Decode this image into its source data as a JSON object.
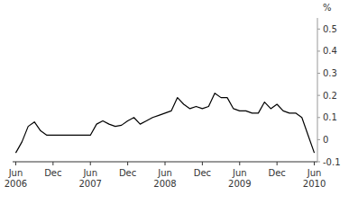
{
  "chart_data": {
    "type": "line",
    "ylabel": "%",
    "categories": [
      "Jun\n2006",
      null,
      null,
      null,
      null,
      null,
      "Dec",
      null,
      null,
      null,
      null,
      null,
      "Jun\n2007",
      null,
      null,
      null,
      null,
      null,
      "Dec",
      null,
      null,
      null,
      null,
      null,
      "Jun\n2008",
      null,
      null,
      null,
      null,
      null,
      "Dec",
      null,
      null,
      null,
      null,
      null,
      "Jun\n2009",
      null,
      null,
      null,
      null,
      null,
      "Dec",
      null,
      null,
      null,
      null,
      null,
      "Jun\n2010"
    ],
    "values": [
      -0.06,
      -0.01,
      0.06,
      0.08,
      0.04,
      0.02,
      0.02,
      0.02,
      0.02,
      0.02,
      0.02,
      0.02,
      0.02,
      0.07,
      0.085,
      0.07,
      0.06,
      0.065,
      0.085,
      0.1,
      0.07,
      0.085,
      0.1,
      0.11,
      0.12,
      0.13,
      0.19,
      0.16,
      0.14,
      0.15,
      0.14,
      0.15,
      0.21,
      0.19,
      0.19,
      0.14,
      0.13,
      0.13,
      0.12,
      0.12,
      0.17,
      0.14,
      0.16,
      0.13,
      0.12,
      0.12,
      0.1,
      0.02,
      -0.06
    ],
    "color": "#000000",
    "ylim": [
      -0.1,
      0.55
    ],
    "yticks": [
      -0.1,
      0,
      0.1,
      0.2,
      0.3,
      0.4,
      0.5
    ],
    "grid": false
  }
}
